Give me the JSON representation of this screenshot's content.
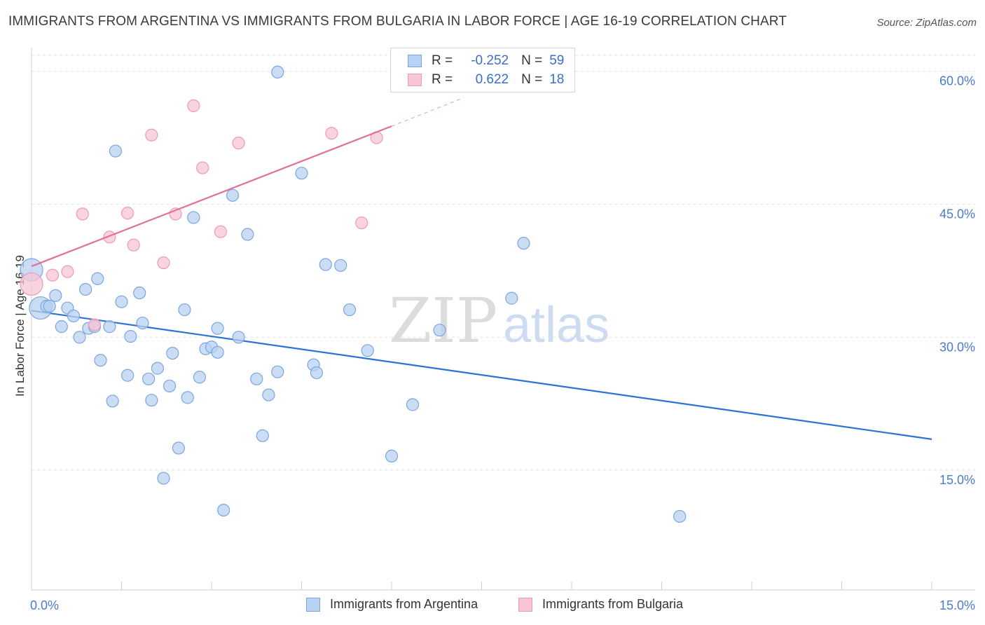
{
  "title": "IMMIGRANTS FROM ARGENTINA VS IMMIGRANTS FROM BULGARIA IN LABOR FORCE | AGE 16-19 CORRELATION CHART",
  "source": "Source: ZipAtlas.com",
  "watermark": {
    "zip": "ZIP",
    "atlas": "atlas"
  },
  "legend": {
    "argentina": {
      "r_label": "R =",
      "r_value": "-0.252",
      "n_label": "N =",
      "n_value": "59"
    },
    "bulgaria": {
      "r_label": "R =",
      "r_value": "0.622",
      "n_label": "N =",
      "n_value": "18"
    }
  },
  "colors": {
    "argentina_fill": "#b9d1f2",
    "argentina_stroke": "#7aa6e0",
    "argentina_line": "#2d72d2",
    "bulgaria_fill": "#f7c5d3",
    "bulgaria_stroke": "#ee9ab4",
    "bulgaria_line": "#e0709a",
    "grid": "#e3e3e3",
    "tick_text": "#4a7cc9"
  },
  "chart_data": {
    "type": "scatter",
    "title": "IMMIGRANTS FROM ARGENTINA VS IMMIGRANTS FROM BULGARIA IN LABOR FORCE | AGE 16-19 CORRELATION CHART",
    "xlabel": "",
    "ylabel": "In Labor Force | Age 16-19",
    "xlim": [
      0,
      15
    ],
    "ylim": [
      1.5,
      62.5
    ],
    "x_tick_labels": [
      "0.0%",
      "15.0%"
    ],
    "y_ticks": [
      15,
      30,
      45,
      60
    ],
    "y_tick_labels": [
      "15.0%",
      "30.0%",
      "45.0%",
      "60.0%"
    ],
    "grid": true,
    "legend_position": "top-center",
    "series": [
      {
        "name": "Immigrants from Argentina",
        "color": "#7aa6e0",
        "points": [
          {
            "x": 0.0,
            "y": 37.6,
            "big": true
          },
          {
            "x": 0.15,
            "y": 33.3,
            "big": true
          },
          {
            "x": 0.25,
            "y": 33.5
          },
          {
            "x": 0.3,
            "y": 33.5
          },
          {
            "x": 0.4,
            "y": 34.7
          },
          {
            "x": 0.5,
            "y": 31.2
          },
          {
            "x": 0.6,
            "y": 33.3
          },
          {
            "x": 0.7,
            "y": 32.4
          },
          {
            "x": 0.8,
            "y": 30.0
          },
          {
            "x": 0.9,
            "y": 35.4
          },
          {
            "x": 0.95,
            "y": 31.0
          },
          {
            "x": 1.05,
            "y": 31.2
          },
          {
            "x": 1.1,
            "y": 36.6
          },
          {
            "x": 1.15,
            "y": 27.4
          },
          {
            "x": 1.3,
            "y": 31.2
          },
          {
            "x": 1.35,
            "y": 22.8
          },
          {
            "x": 1.4,
            "y": 51.0
          },
          {
            "x": 1.5,
            "y": 34.0
          },
          {
            "x": 1.6,
            "y": 25.7
          },
          {
            "x": 1.65,
            "y": 30.1
          },
          {
            "x": 1.8,
            "y": 35.0
          },
          {
            "x": 1.85,
            "y": 31.6
          },
          {
            "x": 1.95,
            "y": 25.3
          },
          {
            "x": 2.0,
            "y": 22.9
          },
          {
            "x": 2.1,
            "y": 26.5
          },
          {
            "x": 2.2,
            "y": 14.1
          },
          {
            "x": 2.3,
            "y": 24.5
          },
          {
            "x": 2.35,
            "y": 28.2
          },
          {
            "x": 2.45,
            "y": 17.5
          },
          {
            "x": 2.55,
            "y": 33.1
          },
          {
            "x": 2.6,
            "y": 23.2
          },
          {
            "x": 2.7,
            "y": 43.5
          },
          {
            "x": 2.8,
            "y": 25.5
          },
          {
            "x": 2.9,
            "y": 28.7
          },
          {
            "x": 3.0,
            "y": 28.9
          },
          {
            "x": 3.1,
            "y": 31.0
          },
          {
            "x": 3.1,
            "y": 28.3
          },
          {
            "x": 3.2,
            "y": 10.5
          },
          {
            "x": 3.35,
            "y": 46.0
          },
          {
            "x": 3.45,
            "y": 30.0
          },
          {
            "x": 3.6,
            "y": 41.6
          },
          {
            "x": 3.75,
            "y": 25.3
          },
          {
            "x": 3.85,
            "y": 18.9
          },
          {
            "x": 3.95,
            "y": 23.5
          },
          {
            "x": 4.1,
            "y": 26.1
          },
          {
            "x": 4.1,
            "y": 59.9
          },
          {
            "x": 4.5,
            "y": 48.5
          },
          {
            "x": 4.7,
            "y": 26.9
          },
          {
            "x": 4.75,
            "y": 26.0
          },
          {
            "x": 4.9,
            "y": 38.2
          },
          {
            "x": 5.15,
            "y": 38.1
          },
          {
            "x": 5.3,
            "y": 33.1
          },
          {
            "x": 5.6,
            "y": 28.5
          },
          {
            "x": 6.0,
            "y": 16.6
          },
          {
            "x": 6.35,
            "y": 22.4
          },
          {
            "x": 6.8,
            "y": 30.8
          },
          {
            "x": 8.0,
            "y": 34.4
          },
          {
            "x": 8.2,
            "y": 40.6
          },
          {
            "x": 10.8,
            "y": 9.8
          }
        ],
        "trend": {
          "x": [
            0,
            15
          ],
          "y": [
            33.0,
            18.5
          ],
          "style": "solid"
        }
      },
      {
        "name": "Immigrants from Bulgaria",
        "color": "#ee9ab4",
        "points": [
          {
            "x": 0.0,
            "y": 36.0,
            "big": true
          },
          {
            "x": 0.35,
            "y": 37.0
          },
          {
            "x": 0.6,
            "y": 37.4
          },
          {
            "x": 0.85,
            "y": 43.9
          },
          {
            "x": 1.05,
            "y": 31.4
          },
          {
            "x": 1.3,
            "y": 41.3
          },
          {
            "x": 1.6,
            "y": 44.0
          },
          {
            "x": 1.7,
            "y": 40.4
          },
          {
            "x": 2.0,
            "y": 52.8
          },
          {
            "x": 2.2,
            "y": 38.4
          },
          {
            "x": 2.4,
            "y": 43.9
          },
          {
            "x": 2.7,
            "y": 56.1
          },
          {
            "x": 2.85,
            "y": 49.1
          },
          {
            "x": 3.15,
            "y": 41.9
          },
          {
            "x": 3.45,
            "y": 51.9
          },
          {
            "x": 5.0,
            "y": 53.0
          },
          {
            "x": 5.75,
            "y": 52.5
          },
          {
            "x": 5.5,
            "y": 42.9
          }
        ],
        "trend": {
          "x": [
            0,
            6.0
          ],
          "y": [
            38.0,
            53.8
          ],
          "dashed_extension": {
            "x": [
              6.0,
              7.2
            ],
            "y": [
              53.8,
              57.0
            ]
          }
        }
      }
    ]
  },
  "bottom_legend": [
    {
      "label": "Immigrants from Argentina"
    },
    {
      "label": "Immigrants from Bulgaria"
    }
  ]
}
